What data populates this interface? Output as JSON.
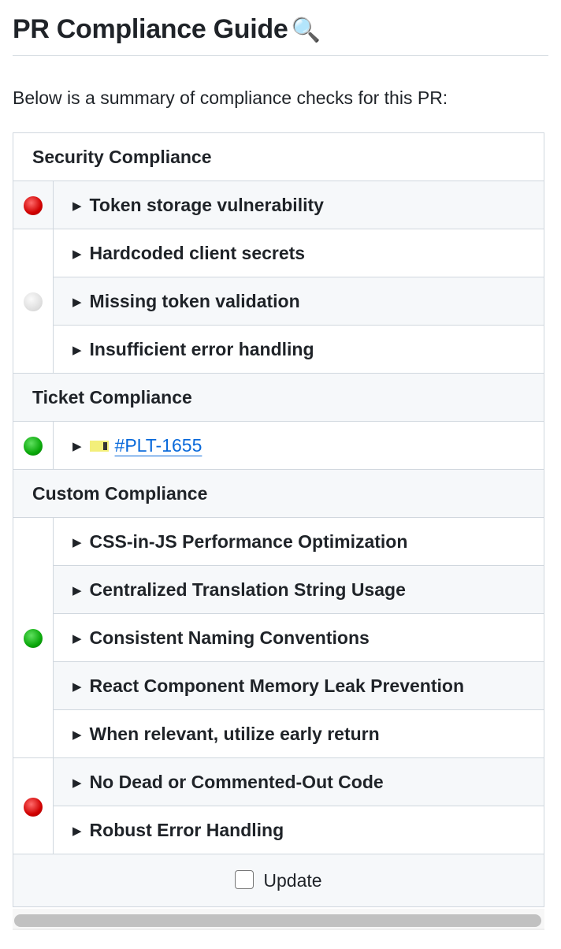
{
  "title": "PR Compliance Guide",
  "title_icon": "magnifying-glass-icon",
  "intro": "Below is a summary of compliance checks for this PR:",
  "sections": {
    "security": {
      "label": "Security Compliance",
      "items": [
        "Token storage vulnerability",
        "Hardcoded client secrets",
        "Missing token validation",
        "Insufficient error handling"
      ]
    },
    "ticket": {
      "label": "Ticket Compliance",
      "link": "#PLT-1655"
    },
    "custom": {
      "label": "Custom Compliance",
      "items": [
        "CSS-in-JS Performance Optimization",
        "Centralized Translation String Usage",
        "Consistent Naming Conventions",
        "React Component Memory Leak Prevention",
        "When relevant, utilize early return",
        "No Dead or Commented-Out Code",
        "Robust Error Handling"
      ]
    }
  },
  "statuses": {
    "red": "#d00000",
    "green": "#0aa80a",
    "gray": "#dcdcdc"
  },
  "update_label": "Update",
  "update_checked": false
}
